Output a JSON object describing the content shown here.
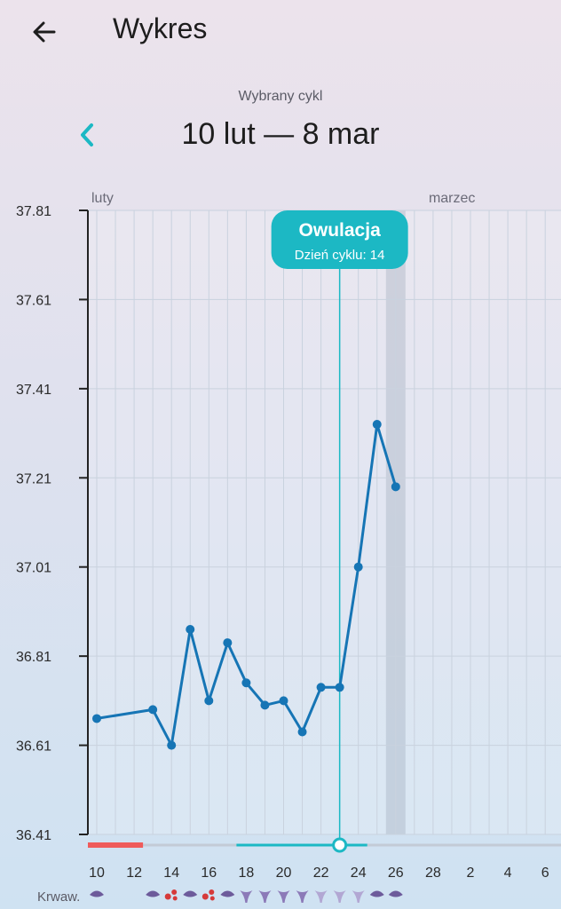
{
  "header": {
    "title": "Wykres"
  },
  "cycle": {
    "caption": "Wybrany cykl",
    "range": "10 lut — 8 mar"
  },
  "chart_data": {
    "type": "line",
    "months": [
      "luty",
      "marzec"
    ],
    "y_ticks": [
      "37.81",
      "37.61",
      "37.41",
      "37.21",
      "37.01",
      "36.81",
      "36.61",
      "36.41"
    ],
    "x_tick_labels": [
      "10",
      "12",
      "14",
      "16",
      "18",
      "20",
      "22",
      "24",
      "26",
      "28",
      "2",
      "4",
      "6"
    ],
    "ylim": [
      36.41,
      37.81
    ],
    "x_days": [
      "10",
      "11",
      "12",
      "13",
      "14",
      "15",
      "16",
      "17",
      "18",
      "19",
      "20",
      "21",
      "22",
      "23",
      "24",
      "25",
      "26",
      "27",
      "28",
      "1",
      "2",
      "3",
      "4",
      "5",
      "6"
    ],
    "series": [
      {
        "points": [
          {
            "x": "10",
            "y": 36.67
          },
          {
            "x": "13",
            "y": 36.69
          },
          {
            "x": "14",
            "y": 36.61
          },
          {
            "x": "15",
            "y": 36.87
          },
          {
            "x": "16",
            "y": 36.71
          },
          {
            "x": "17",
            "y": 36.84
          },
          {
            "x": "18",
            "y": 36.75
          },
          {
            "x": "19",
            "y": 36.7
          },
          {
            "x": "20",
            "y": 36.71
          },
          {
            "x": "21",
            "y": 36.64
          },
          {
            "x": "22",
            "y": 36.74
          },
          {
            "x": "23",
            "y": 36.74
          },
          {
            "x": "24",
            "y": 37.01
          },
          {
            "x": "25",
            "y": 37.33
          },
          {
            "x": "26",
            "y": 37.19
          }
        ]
      }
    ],
    "ovulation": {
      "label": "Owulacja",
      "sub_label": "Dzień cyklu: 14",
      "day": "23"
    },
    "highlight_day": "26",
    "bleeding_range": [
      "10",
      "12"
    ],
    "fertile_range": [
      "18",
      "24"
    ],
    "legend_label": "Krwaw.",
    "day_icons": [
      {
        "x": "10",
        "icon": "drop-dark-icon"
      },
      {
        "x": "13",
        "icon": "drop-dark-icon"
      },
      {
        "x": "14",
        "icon": "blood-drops-icon"
      },
      {
        "x": "15",
        "icon": "drop-dark-icon"
      },
      {
        "x": "16",
        "icon": "blood-drops-icon"
      },
      {
        "x": "17",
        "icon": "drop-dark-icon"
      },
      {
        "x": "18",
        "icon": "mucus-icon"
      },
      {
        "x": "19",
        "icon": "mucus-icon"
      },
      {
        "x": "20",
        "icon": "mucus-icon"
      },
      {
        "x": "21",
        "icon": "mucus-icon"
      },
      {
        "x": "22",
        "icon": "mucus-light-icon"
      },
      {
        "x": "23",
        "icon": "mucus-light-icon"
      },
      {
        "x": "24",
        "icon": "mucus-light-icon"
      },
      {
        "x": "25",
        "icon": "drop-dark-icon"
      },
      {
        "x": "26",
        "icon": "drop-dark-icon"
      }
    ],
    "colors": {
      "line": "#1675b5",
      "ovulation": "#1cb8c4",
      "bleeding": "#ef5b5b",
      "axis": "#222222",
      "grid": "#c9d2de",
      "icon_dark": "#6d5b9b",
      "icon_red": "#d63a3a",
      "icon_mucus": "#8c7ab8",
      "icon_mucus_light": "#b2a7d3"
    }
  }
}
